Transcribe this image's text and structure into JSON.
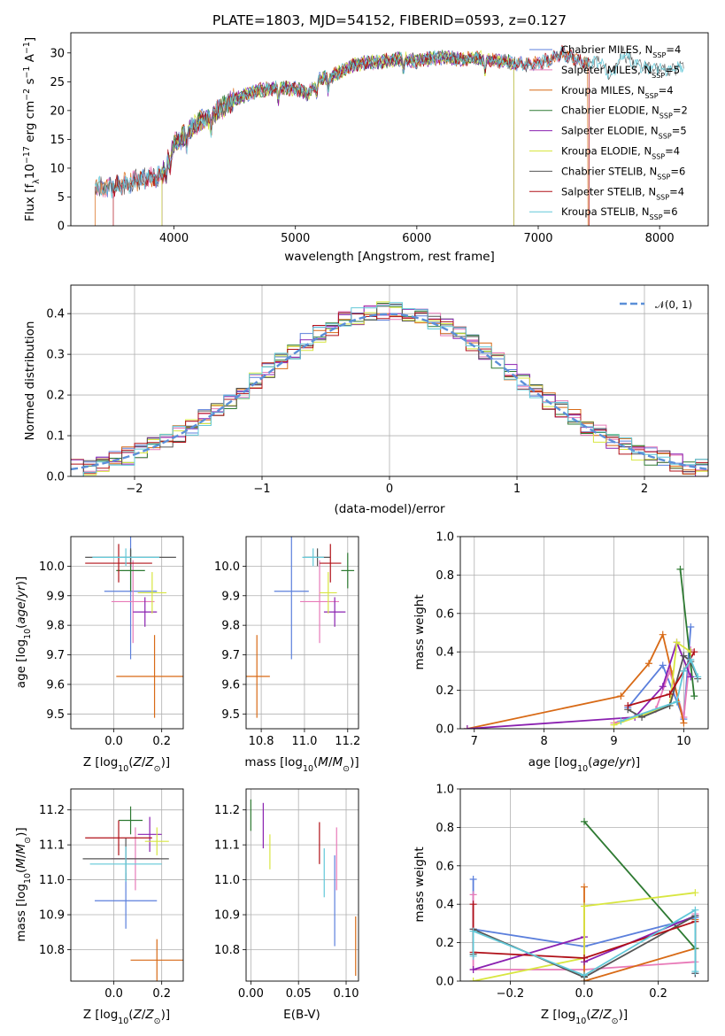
{
  "title": "PLATE=1803, MJD=54152, FIBERID=0593, z=0.127",
  "colors": {
    "Chabrier MILES": "#5b7fdc",
    "Salpeter MILES": "#e87ab8",
    "Kroupa MILES": "#d86a16",
    "Chabrier ELODIE": "#2e7a32",
    "Salpeter ELODIE": "#8a20b0",
    "Kroupa ELODIE": "#d8e640",
    "Chabrier STELIB": "#555555",
    "Salpeter STELIB": "#b01018",
    "Kroupa STELIB": "#62c8d8"
  },
  "chart_data": [
    {
      "type": "line",
      "title": "PLATE=1803, MJD=54152, FIBERID=0593, z=0.127",
      "xlabel": "wavelength [Angstrom, rest frame]",
      "ylabel": "Flux [fλ10⁻¹⁷ erg cm⁻² s⁻¹ A⁻¹]",
      "xlim": [
        3150,
        8400
      ],
      "ylim": [
        0,
        33.5
      ],
      "xticks": [
        4000,
        5000,
        6000,
        7000,
        8000
      ],
      "yticks": [
        0,
        5,
        10,
        15,
        20,
        25,
        30
      ],
      "grid": false,
      "legend_position": "top-right",
      "legend": [
        "Chabrier MILES, NSSP=4",
        "Salpeter MILES, NSSP=5",
        "Kroupa MILES, NSSP=4",
        "Chabrier ELODIE, NSSP=2",
        "Salpeter ELODIE, NSSP=5",
        "Kroupa ELODIE, NSSP=4",
        "Chabrier STELIB, NSSP=6",
        "Salpeter STELIB, NSSP=4",
        "Kroupa STELIB, NSSP=6"
      ],
      "continuum": {
        "x": [
          3350,
          3450,
          3600,
          3750,
          3900,
          3950,
          4000,
          4100,
          4200,
          4300,
          4400,
          4500,
          4600,
          4700,
          4800,
          4900,
          5000,
          5100,
          5200,
          5300,
          5400,
          5500,
          5600,
          5700,
          5800,
          5900,
          6000,
          6100,
          6200,
          6300,
          6400,
          6500,
          6600,
          6700,
          6800,
          6900,
          7000,
          7100,
          7200,
          7300,
          7400,
          7500,
          7600,
          7700,
          7800,
          7900,
          8000,
          8100,
          8200
        ],
        "y": [
          6.8,
          6.5,
          7.3,
          8.2,
          8.6,
          11.5,
          14.2,
          16.0,
          18.0,
          19.0,
          20.5,
          22.0,
          22.8,
          23.5,
          23.8,
          24.0,
          23.8,
          22.8,
          25.5,
          26.0,
          27.0,
          28.0,
          28.3,
          28.5,
          28.8,
          29.0,
          28.5,
          29.0,
          29.2,
          29.0,
          28.8,
          29.2,
          28.8,
          28.5,
          28.3,
          28.0,
          28.3,
          28.8,
          30.0,
          29.0,
          28.0,
          28.5,
          26.0,
          30.0,
          28.0,
          27.5,
          27.2,
          27.0,
          27.8
        ]
      },
      "series_x_ranges": {
        "Chabrier MILES": [
          3350,
          7410
        ],
        "Salpeter MILES": [
          3350,
          7410
        ],
        "Kroupa MILES": [
          3350,
          7410
        ],
        "Chabrier ELODIE": [
          3900,
          6800
        ],
        "Salpeter ELODIE": [
          3900,
          6800
        ],
        "Kroupa ELODIE": [
          3900,
          6800
        ],
        "Chabrier STELIB": [
          3350,
          8200
        ],
        "Salpeter STELIB": [
          3500,
          7420
        ],
        "Kroupa STELIB": [
          3350,
          8200
        ]
      }
    },
    {
      "type": "step",
      "xlabel": "(data-model)/error",
      "ylabel": "Normed distribution",
      "xlim": [
        -2.5,
        2.5
      ],
      "ylim": [
        0,
        0.47
      ],
      "xticks": [
        -2,
        -1,
        0,
        1,
        2
      ],
      "yticks": [
        0.0,
        0.1,
        0.2,
        0.3,
        0.4
      ],
      "grid": true,
      "legend_position": "top-right",
      "legend": [
        "N(0, 1)"
      ],
      "reference_curve": "normal pdf, mean 0, sigma 1",
      "bin_width": 0.1
    },
    {
      "type": "scatter",
      "xlabel": "Z [log10(Z/Z⊙)]",
      "ylabel": "age  [log10(age/yr)]",
      "xlim": [
        -0.18,
        0.29
      ],
      "ylim": [
        9.45,
        10.1
      ],
      "xticks": [
        0.0,
        0.2
      ],
      "yticks": [
        9.5,
        9.6,
        9.7,
        9.8,
        9.9,
        10.0
      ],
      "grid": true,
      "error_bars": [
        {
          "series": "Chabrier MILES",
          "x": 0.07,
          "xerr": 0.11,
          "y": 9.915,
          "yerr": 0.23
        },
        {
          "series": "Salpeter MILES",
          "x": 0.08,
          "xerr": 0.09,
          "y": 9.88,
          "yerr": 0.14
        },
        {
          "series": "Kroupa MILES",
          "x": 0.17,
          "xerr": 0.16,
          "y": 9.627,
          "yerr": 0.14
        },
        {
          "series": "Chabrier ELODIE",
          "x": 0.07,
          "xerr": 0.06,
          "y": 9.985,
          "yerr": 0.07
        },
        {
          "series": "Salpeter ELODIE",
          "x": 0.13,
          "xerr": 0.05,
          "y": 9.845,
          "yerr": 0.05
        },
        {
          "series": "Kroupa ELODIE",
          "x": 0.16,
          "xerr": 0.06,
          "y": 9.91,
          "yerr": 0.07
        },
        {
          "series": "Chabrier STELIB",
          "x": 0.07,
          "xerr": 0.19,
          "y": 10.03,
          "yerr": 0.03
        },
        {
          "series": "Salpeter STELIB",
          "x": 0.02,
          "xerr": 0.14,
          "y": 10.01,
          "yerr": 0.065
        },
        {
          "series": "Kroupa STELIB",
          "x": 0.05,
          "xerr": 0.14,
          "y": 10.03,
          "yerr": 0.03
        }
      ]
    },
    {
      "type": "scatter",
      "xlabel": "mass [log10(M/M⊙)]",
      "ylabel": "",
      "xlim": [
        10.73,
        11.25
      ],
      "ylim": [
        9.45,
        10.1
      ],
      "xticks": [
        10.8,
        11.0,
        11.2
      ],
      "yticks": [
        9.5,
        9.6,
        9.7,
        9.8,
        9.9,
        10.0
      ],
      "grid": true,
      "error_bars": [
        {
          "series": "Chabrier MILES",
          "x": 10.94,
          "xerr": 0.08,
          "y": 9.915,
          "yerr": 0.23
        },
        {
          "series": "Salpeter MILES",
          "x": 11.07,
          "xerr": 0.09,
          "y": 9.88,
          "yerr": 0.14
        },
        {
          "series": "Kroupa MILES",
          "x": 10.78,
          "xerr": 0.06,
          "y": 9.627,
          "yerr": 0.14
        },
        {
          "series": "Chabrier ELODIE",
          "x": 11.2,
          "xerr": 0.03,
          "y": 9.985,
          "yerr": 0.06
        },
        {
          "series": "Salpeter ELODIE",
          "x": 11.14,
          "xerr": 0.05,
          "y": 9.845,
          "yerr": 0.05
        },
        {
          "series": "Kroupa ELODIE",
          "x": 11.11,
          "xerr": 0.04,
          "y": 9.91,
          "yerr": 0.07
        },
        {
          "series": "Chabrier STELIB",
          "x": 11.06,
          "xerr": 0.06,
          "y": 10.03,
          "yerr": 0.03
        },
        {
          "series": "Salpeter STELIB",
          "x": 11.12,
          "xerr": 0.05,
          "y": 10.01,
          "yerr": 0.065
        },
        {
          "series": "Kroupa STELIB",
          "x": 11.04,
          "xerr": 0.05,
          "y": 10.03,
          "yerr": 0.03
        }
      ]
    },
    {
      "type": "line",
      "xlabel": "age  [log10(age/yr)]",
      "ylabel": "mass weight",
      "xlim": [
        6.8,
        10.35
      ],
      "ylim": [
        0,
        1.0
      ],
      "xticks": [
        7,
        8,
        9,
        10
      ],
      "yticks": [
        0.0,
        0.2,
        0.4,
        0.6,
        0.8,
        1.0
      ],
      "grid": true,
      "series": [
        {
          "name": "Chabrier MILES",
          "x": [
            9.2,
            9.7,
            10.0,
            10.1
          ],
          "y": [
            0.11,
            0.33,
            0.05,
            0.53
          ]
        },
        {
          "name": "Salpeter MILES",
          "x": [
            9.0,
            9.6,
            9.8,
            10.0,
            10.1
          ],
          "y": [
            0.03,
            0.1,
            0.3,
            0.06,
            0.41
          ]
        },
        {
          "name": "Kroupa MILES",
          "x": [
            6.9,
            9.1,
            9.5,
            9.7,
            10.0
          ],
          "y": [
            0.0,
            0.17,
            0.34,
            0.49,
            0.03
          ]
        },
        {
          "name": "Chabrier ELODIE",
          "x": [
            9.95,
            10.15
          ],
          "y": [
            0.83,
            0.17
          ]
        },
        {
          "name": "Salpeter ELODIE",
          "x": [
            6.9,
            9.3,
            9.7,
            9.9,
            10.1
          ],
          "y": [
            0.0,
            0.06,
            0.22,
            0.45,
            0.27
          ]
        },
        {
          "name": "Kroupa ELODIE",
          "x": [
            9.0,
            9.8,
            9.9,
            10.1
          ],
          "y": [
            0.02,
            0.12,
            0.45,
            0.4
          ]
        },
        {
          "name": "Chabrier STELIB",
          "x": [
            9.2,
            9.4,
            9.8,
            10.0,
            10.1,
            10.2
          ],
          "y": [
            0.1,
            0.06,
            0.12,
            0.38,
            0.35,
            0.26
          ]
        },
        {
          "name": "Salpeter STELIB",
          "x": [
            9.2,
            9.8,
            10.0,
            10.15
          ],
          "y": [
            0.12,
            0.18,
            0.3,
            0.4
          ]
        },
        {
          "name": "Kroupa STELIB",
          "x": [
            9.1,
            9.9,
            10.0,
            10.1,
            10.2
          ],
          "y": [
            0.04,
            0.14,
            0.3,
            0.36,
            0.27
          ]
        }
      ]
    },
    {
      "type": "scatter",
      "xlabel": "Z [log10(Z/Z⊙)]",
      "ylabel": "mass [log10(M/M⊙)]",
      "xlim": [
        -0.18,
        0.29
      ],
      "ylim": [
        10.71,
        11.26
      ],
      "xticks": [
        0.0,
        0.2
      ],
      "yticks": [
        10.8,
        10.9,
        11.0,
        11.1,
        11.2
      ],
      "grid": true,
      "error_bars": [
        {
          "series": "Chabrier MILES",
          "x": 0.05,
          "xerr": 0.13,
          "y": 10.94,
          "yerr": 0.08
        },
        {
          "series": "Salpeter MILES",
          "x": 0.09,
          "xerr": 0.1,
          "y": 11.06,
          "yerr": 0.09
        },
        {
          "series": "Kroupa MILES",
          "x": 0.18,
          "xerr": 0.11,
          "y": 10.77,
          "yerr": 0.06
        },
        {
          "series": "Chabrier ELODIE",
          "x": 0.07,
          "xerr": 0.05,
          "y": 11.17,
          "yerr": 0.04
        },
        {
          "series": "Salpeter ELODIE",
          "x": 0.15,
          "xerr": 0.05,
          "y": 11.13,
          "yerr": 0.05
        },
        {
          "series": "Kroupa ELODIE",
          "x": 0.18,
          "xerr": 0.05,
          "y": 11.11,
          "yerr": 0.04
        },
        {
          "series": "Chabrier STELIB",
          "x": 0.05,
          "xerr": 0.18,
          "y": 11.06,
          "yerr": 0.06
        },
        {
          "series": "Salpeter STELIB",
          "x": 0.02,
          "xerr": 0.14,
          "y": 11.12,
          "yerr": 0.05
        },
        {
          "series": "Kroupa STELIB",
          "x": 0.05,
          "xerr": 0.15,
          "y": 11.045,
          "yerr": 0.05
        }
      ]
    },
    {
      "type": "scatter",
      "xlabel": "E(B-V)",
      "ylabel": "",
      "xlim": [
        -0.005,
        0.113
      ],
      "ylim": [
        10.71,
        11.26
      ],
      "xticks": [
        0.0,
        0.05,
        0.1
      ],
      "yticks": [
        10.8,
        10.9,
        11.0,
        11.1,
        11.2
      ],
      "grid": true,
      "error_bars": [
        {
          "series": "Chabrier MILES",
          "x": 0.088,
          "xerr": 0,
          "y": 10.94,
          "yerr": 0.13
        },
        {
          "series": "Salpeter MILES",
          "x": 0.09,
          "xerr": 0,
          "y": 11.06,
          "yerr": 0.09
        },
        {
          "series": "Kroupa MILES",
          "x": 0.11,
          "xerr": 0,
          "y": 10.81,
          "yerr": 0.085
        },
        {
          "series": "Chabrier ELODIE",
          "x": 0.0,
          "xerr": 0,
          "y": 11.185,
          "yerr": 0.045
        },
        {
          "series": "Salpeter ELODIE",
          "x": 0.013,
          "xerr": 0,
          "y": 11.155,
          "yerr": 0.065
        },
        {
          "series": "Kroupa ELODIE",
          "x": 0.02,
          "xerr": 0,
          "y": 11.08,
          "yerr": 0.05
        },
        {
          "series": "Salpeter STELIB",
          "x": 0.072,
          "xerr": 0,
          "y": 11.105,
          "yerr": 0.06
        },
        {
          "series": "Kroupa STELIB",
          "x": 0.077,
          "xerr": 0,
          "y": 11.02,
          "yerr": 0.07
        }
      ]
    },
    {
      "type": "line",
      "xlabel": "Z [log10(Z/Z⊙)]",
      "ylabel": "mass weight",
      "xlim": [
        -0.335,
        0.335
      ],
      "ylim": [
        0,
        1.0
      ],
      "xticks": [
        -0.2,
        0.0,
        0.2
      ],
      "yticks": [
        0.0,
        0.2,
        0.4,
        0.6,
        0.8,
        1.0
      ],
      "grid": true,
      "series": [
        {
          "name": "Chabrier MILES",
          "x": [
            -0.3,
            -0.3,
            0.0,
            0.3,
            0.3
          ],
          "y": [
            0.53,
            0.27,
            0.18,
            0.33,
            0.04
          ]
        },
        {
          "name": "Salpeter MILES",
          "x": [
            -0.3,
            -0.3,
            0.0,
            0.3,
            0.3
          ],
          "y": [
            0.45,
            0.06,
            0.06,
            0.1,
            0.35
          ]
        },
        {
          "name": "Kroupa MILES",
          "x": [
            0.0,
            0.0,
            0.3,
            0.3
          ],
          "y": [
            0.49,
            0.0,
            0.17,
            0.32
          ]
        },
        {
          "name": "Chabrier ELODIE",
          "x": [
            0.0,
            0.3
          ],
          "y": [
            0.83,
            0.17
          ]
        },
        {
          "name": "Salpeter ELODIE",
          "x": [
            -0.3,
            0.0,
            0.0,
            0.3
          ],
          "y": [
            0.06,
            0.23,
            0.1,
            0.34
          ]
        },
        {
          "name": "Kroupa ELODIE",
          "x": [
            -0.3,
            0.0,
            0.0,
            0.3
          ],
          "y": [
            0.0,
            0.12,
            0.39,
            0.46
          ]
        },
        {
          "name": "Chabrier STELIB",
          "x": [
            -0.3,
            -0.3,
            0.0,
            0.3,
            0.3
          ],
          "y": [
            0.14,
            0.27,
            0.02,
            0.34,
            0.04
          ]
        },
        {
          "name": "Salpeter STELIB",
          "x": [
            -0.3,
            -0.3,
            0.0,
            0.3
          ],
          "y": [
            0.4,
            0.15,
            0.12,
            0.31
          ]
        },
        {
          "name": "Kroupa STELIB",
          "x": [
            -0.3,
            -0.3,
            0.0,
            0.3,
            0.3
          ],
          "y": [
            0.13,
            0.26,
            0.03,
            0.37,
            0.05
          ]
        }
      ]
    }
  ]
}
